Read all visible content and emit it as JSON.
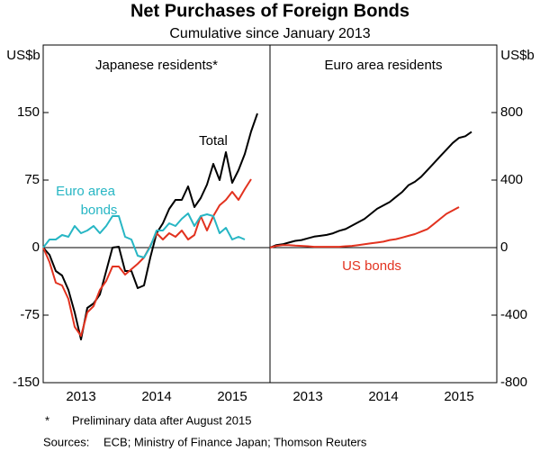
{
  "header": {
    "title": "Net Purchases of Foreign Bonds",
    "subtitle": "Cumulative since January 2013",
    "note_marker": "*",
    "note": "Preliminary data after August 2015",
    "sources_label": "Sources:",
    "sources": "ECB; Ministry of Finance Japan; Thomson Reuters"
  },
  "chart_data": [
    {
      "type": "line",
      "title": "Japanese residents*",
      "ylabel": "US$b",
      "xlim": [
        2013,
        2016
      ],
      "xticks": [
        {
          "value": 2013.5,
          "label": "2013"
        },
        {
          "value": 2014.5,
          "label": "2014"
        },
        {
          "value": 2015.5,
          "label": "2015"
        }
      ],
      "ylim": [
        -150,
        225
      ],
      "yticks": [
        -150,
        -75,
        0,
        75,
        150
      ],
      "x": [
        2013,
        2013.0833,
        2013.1667,
        2013.25,
        2013.3333,
        2013.4167,
        2013.5,
        2013.5833,
        2013.6667,
        2013.75,
        2013.8333,
        2013.9167,
        2014,
        2014.0833,
        2014.1667,
        2014.25,
        2014.3333,
        2014.4167,
        2014.5,
        2014.5833,
        2014.6667,
        2014.75,
        2014.8333,
        2014.9167,
        2015,
        2015.0833,
        2015.1667,
        2015.25,
        2015.3333,
        2015.4167,
        2015.5,
        2015.5833,
        2015.6667,
        2015.75,
        2015.8333
      ],
      "series": [
        {
          "name": "Total",
          "color": "#000000",
          "values": [
            0,
            -8,
            -26,
            -31,
            -47,
            -72,
            -102,
            -67,
            -62,
            -52,
            -26,
            0,
            1,
            -26,
            -26,
            -45,
            -42,
            -11,
            16,
            27,
            43,
            53,
            53,
            68,
            45,
            55,
            70,
            93,
            75,
            106,
            72,
            86,
            104,
            129,
            149
          ]
        },
        {
          "color": "#e2321f",
          "values": [
            0,
            -16,
            -39,
            -42,
            -57,
            -88,
            -98,
            -72,
            -65,
            -47,
            -37,
            -21,
            -21,
            -30,
            -24,
            -18,
            -11,
            2,
            16,
            9,
            16,
            12,
            19,
            9,
            14,
            35,
            19,
            35,
            47,
            53,
            62,
            53,
            65,
            76,
            null
          ]
        },
        {
          "name": "Euro area bonds",
          "color": "#27b6c4",
          "values": [
            0,
            9,
            9,
            14,
            12,
            24,
            16,
            19,
            24,
            16,
            24,
            35,
            35,
            12,
            9,
            -9,
            -11,
            1,
            19,
            19,
            27,
            24,
            32,
            38,
            24,
            35,
            37,
            35,
            16,
            22,
            9,
            12,
            9,
            null,
            null
          ]
        }
      ]
    },
    {
      "type": "line",
      "title": "Euro area residents",
      "ylabel": "US$b",
      "xlim": [
        2013,
        2016
      ],
      "xticks": [
        {
          "value": 2013.5,
          "label": "2013"
        },
        {
          "value": 2014.5,
          "label": "2014"
        },
        {
          "value": 2015.5,
          "label": "2015"
        }
      ],
      "ylim": [
        -800,
        1200
      ],
      "yticks": [
        -800,
        -400,
        0,
        400,
        800
      ],
      "x": [
        2013,
        2013.0833,
        2013.1667,
        2013.25,
        2013.3333,
        2013.4167,
        2013.5,
        2013.5833,
        2013.6667,
        2013.75,
        2013.8333,
        2013.9167,
        2014,
        2014.0833,
        2014.1667,
        2014.25,
        2014.3333,
        2014.4167,
        2014.5,
        2014.5833,
        2014.6667,
        2014.75,
        2014.8333,
        2014.9167,
        2015,
        2015.0833,
        2015.1667,
        2015.25,
        2015.3333,
        2015.4167,
        2015.5,
        2015.5833,
        2015.6667
      ],
      "series": [
        {
          "color": "#000000",
          "values": [
            0,
            15,
            20,
            30,
            40,
            45,
            55,
            65,
            70,
            75,
            85,
            100,
            110,
            130,
            150,
            170,
            200,
            230,
            250,
            270,
            300,
            330,
            370,
            390,
            420,
            460,
            500,
            540,
            580,
            620,
            650,
            660,
            686
          ]
        },
        {
          "name": "US bonds",
          "color": "#e2321f",
          "values": [
            0,
            10,
            15,
            15,
            12,
            10,
            8,
            5,
            5,
            5,
            5,
            5,
            8,
            10,
            15,
            20,
            25,
            30,
            35,
            45,
            50,
            60,
            70,
            80,
            95,
            110,
            140,
            170,
            200,
            220,
            240,
            null,
            null
          ]
        }
      ]
    }
  ]
}
